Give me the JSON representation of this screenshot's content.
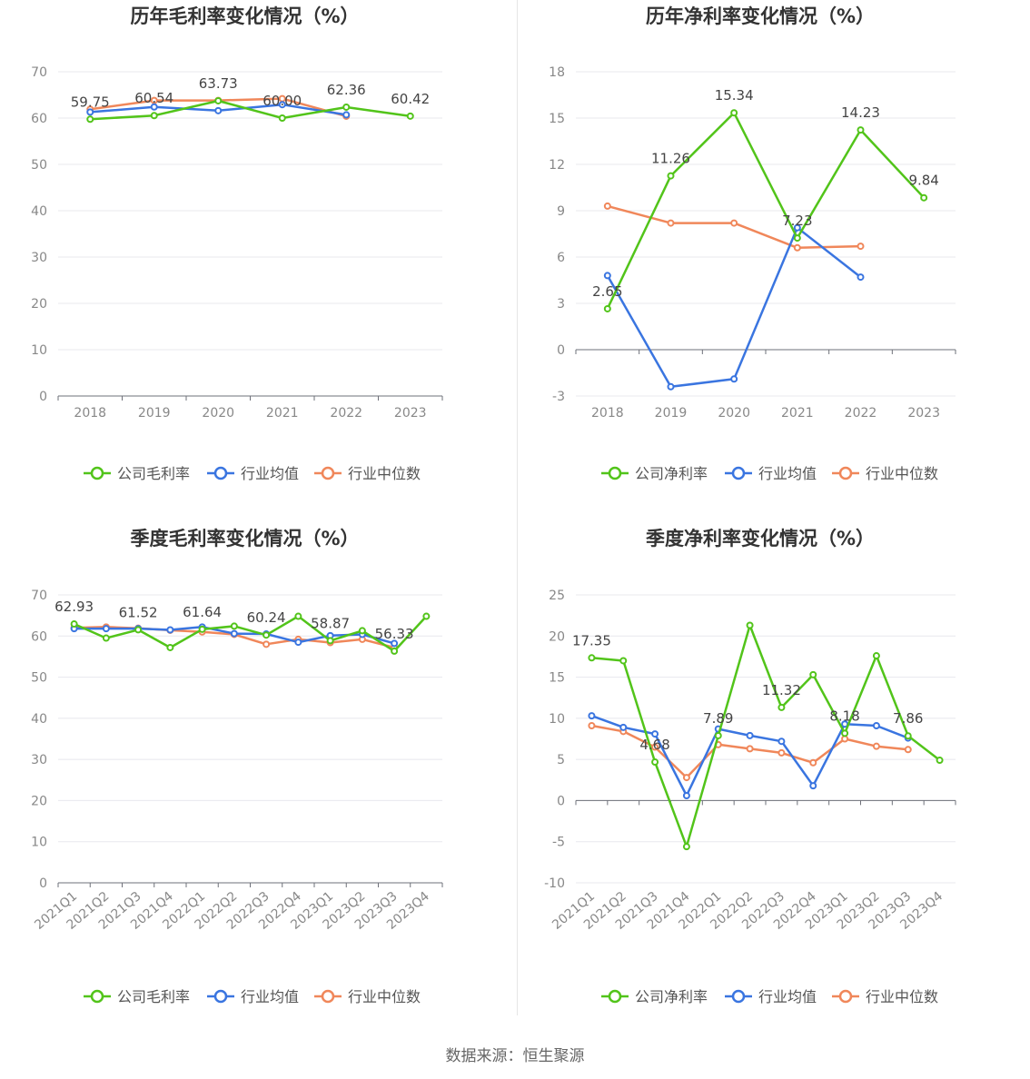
{
  "colors": {
    "company": "#52c41a",
    "industry_avg": "#3a75e0",
    "industry_median": "#f0875a"
  },
  "legend": [
    "行业均值",
    "行业中位数"
  ],
  "footer": "数据来源：恒生聚源",
  "chart_data": [
    {
      "type": "line",
      "title": "历年毛利率变化情况（%）",
      "categories": [
        "2018",
        "2019",
        "2020",
        "2021",
        "2022",
        "2023"
      ],
      "ylim": [
        0,
        70
      ],
      "yticks": [
        0,
        10,
        20,
        30,
        40,
        50,
        60,
        70
      ],
      "legend_position": "bottom",
      "series": [
        {
          "name": "公司毛利率",
          "values": [
            59.75,
            60.54,
            63.73,
            60.0,
            62.36,
            60.42
          ]
        },
        {
          "name": "行业均值",
          "values": [
            61.3,
            62.4,
            61.6,
            62.9,
            60.7,
            null
          ]
        },
        {
          "name": "行业中位数",
          "values": [
            61.9,
            63.8,
            63.8,
            64.2,
            60.4,
            null
          ]
        }
      ],
      "labels": [
        "59.75",
        "60.54",
        "63.73",
        "60.00",
        "62.36",
        "60.42"
      ]
    },
    {
      "type": "line",
      "title": "历年净利率变化情况（%）",
      "categories": [
        "2018",
        "2019",
        "2020",
        "2021",
        "2022",
        "2023"
      ],
      "ylim": [
        -3,
        18
      ],
      "yticks": [
        -3,
        0,
        3,
        6,
        9,
        12,
        15,
        18
      ],
      "legend_position": "bottom",
      "series": [
        {
          "name": "公司净利率",
          "values": [
            2.65,
            11.26,
            15.34,
            7.23,
            14.23,
            9.84
          ]
        },
        {
          "name": "行业均值",
          "values": [
            4.8,
            -2.4,
            -1.9,
            7.9,
            4.7,
            null
          ]
        },
        {
          "name": "行业中位数",
          "values": [
            9.3,
            8.2,
            8.2,
            6.6,
            6.7,
            null
          ]
        }
      ],
      "labels": [
        "2.65",
        "11.26",
        "15.34",
        "7.23",
        "14.23",
        "9.84"
      ]
    },
    {
      "type": "line",
      "title": "季度毛利率变化情况（%）",
      "categories": [
        "2021Q1",
        "2021Q2",
        "2021Q3",
        "2021Q4",
        "2022Q1",
        "2022Q2",
        "2022Q3",
        "2022Q4",
        "2023Q1",
        "2023Q2",
        "2023Q3",
        "2023Q4"
      ],
      "ylim": [
        0,
        70
      ],
      "yticks": [
        0,
        10,
        20,
        30,
        40,
        50,
        60,
        70
      ],
      "legend_position": "bottom",
      "series": [
        {
          "name": "公司毛利率",
          "values": [
            62.93,
            59.5,
            61.52,
            57.2,
            61.64,
            62.4,
            60.24,
            64.8,
            58.87,
            61.3,
            56.33,
            64.8
          ]
        },
        {
          "name": "行业均值",
          "values": [
            61.8,
            61.8,
            61.8,
            61.5,
            62.2,
            60.6,
            60.5,
            58.5,
            60.1,
            60.4,
            58.2,
            null
          ]
        },
        {
          "name": "行业中位数",
          "values": [
            62.0,
            62.2,
            61.9,
            61.4,
            61.0,
            60.4,
            58.0,
            59.2,
            58.4,
            59.2,
            57.2,
            null
          ]
        }
      ],
      "labels": [
        "62.93",
        "",
        "61.52",
        "",
        "61.64",
        "",
        "60.24",
        "",
        "58.87",
        "",
        "56.33",
        ""
      ]
    },
    {
      "type": "line",
      "title": "季度净利率变化情况（%）",
      "categories": [
        "2021Q1",
        "2021Q2",
        "2021Q3",
        "2021Q4",
        "2022Q1",
        "2022Q2",
        "2022Q3",
        "2022Q4",
        "2023Q1",
        "2023Q2",
        "2023Q3",
        "2023Q4"
      ],
      "ylim": [
        -10,
        25
      ],
      "yticks": [
        -10,
        -5,
        0,
        5,
        10,
        15,
        20,
        25
      ],
      "legend_position": "bottom",
      "series": [
        {
          "name": "公司净利率",
          "values": [
            17.35,
            17.0,
            4.68,
            -5.6,
            7.89,
            21.3,
            11.32,
            15.3,
            8.18,
            17.6,
            7.86,
            4.9
          ]
        },
        {
          "name": "行业均值",
          "values": [
            10.3,
            8.9,
            8.1,
            0.6,
            8.7,
            7.9,
            7.2,
            1.8,
            9.3,
            9.1,
            7.6,
            null
          ]
        },
        {
          "name": "行业中位数",
          "values": [
            9.1,
            8.4,
            6.5,
            2.8,
            6.8,
            6.3,
            5.8,
            4.6,
            7.5,
            6.6,
            6.2,
            null
          ]
        }
      ],
      "labels": [
        "17.35",
        "",
        "4.68",
        "",
        "7.89",
        "",
        "11.32",
        "",
        "8.18",
        "",
        "7.86",
        ""
      ]
    }
  ]
}
